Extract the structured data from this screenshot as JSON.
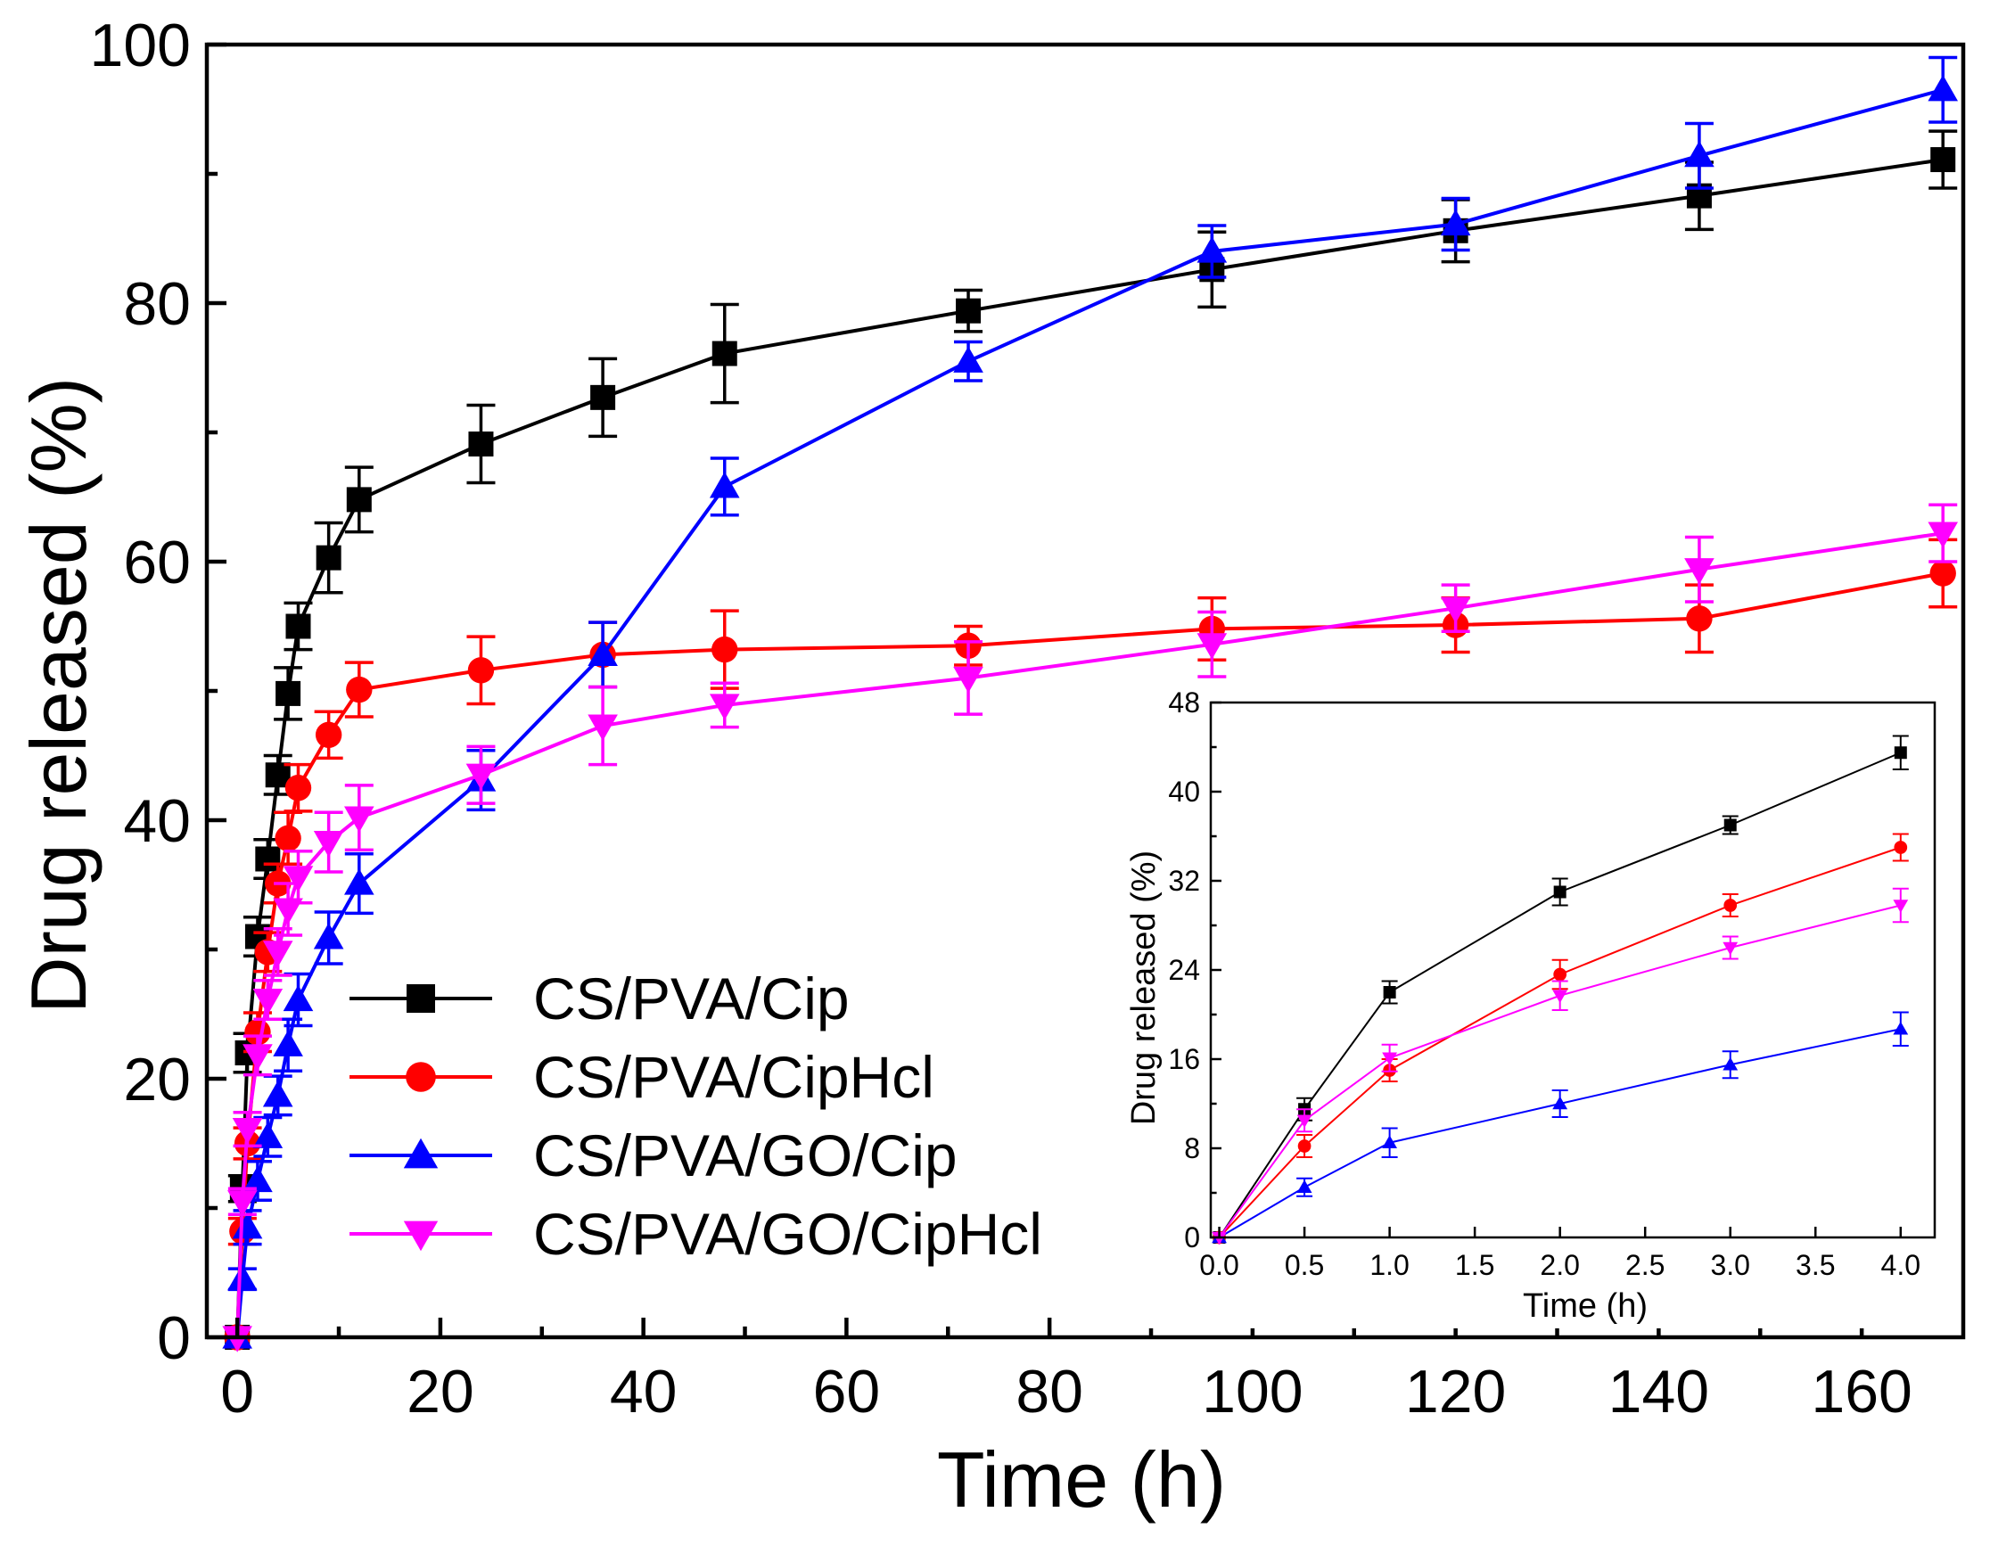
{
  "chart_data": [
    {
      "id": "main",
      "type": "line",
      "xlabel": "Time (h)",
      "ylabel": "Drug released (%)",
      "xlim": [
        -3,
        170
      ],
      "ylim": [
        0,
        100
      ],
      "xticks": [
        0,
        20,
        40,
        60,
        80,
        100,
        120,
        140,
        160
      ],
      "yticks": [
        0,
        20,
        40,
        60,
        80,
        100
      ],
      "legend_position": "center-left",
      "x": [
        0,
        0.5,
        1,
        2,
        3,
        4,
        5,
        6,
        9,
        12,
        24,
        36,
        48,
        72,
        96,
        120,
        144,
        168
      ],
      "series": [
        {
          "name": "CS/PVA/Cip",
          "color": "#000000",
          "marker": "square",
          "values": [
            0,
            11.5,
            22,
            31,
            37,
            43.5,
            49.8,
            55,
            60.3,
            64.8,
            69.1,
            72.7,
            76.1,
            79.4,
            82.6,
            85.6,
            88.3,
            91.1
          ],
          "errors": [
            0,
            1,
            1.5,
            1.5,
            1.5,
            1.5,
            2,
            1.8,
            2.7,
            2.5,
            3,
            3,
            3.8,
            1.6,
            2.9,
            2.4,
            2.6,
            2.2
          ]
        },
        {
          "name": "CS/PVA/CipHcl",
          "color": "#ff0000",
          "marker": "circle",
          "values": [
            0,
            8.2,
            15,
            23.6,
            29.8,
            35.1,
            38.6,
            42.5,
            46.6,
            50.1,
            51.6,
            52.8,
            53.2,
            53.5,
            54.8,
            55.1,
            55.6,
            59.1
          ],
          "errors": [
            0,
            1,
            1.2,
            1.5,
            1.5,
            1.5,
            2,
            1.8,
            1.8,
            2.1,
            2.6,
            2.5,
            3,
            1.5,
            2.4,
            2.1,
            2.6,
            2.6
          ]
        },
        {
          "name": "CS/PVA/GO/Cip",
          "color": "#0000ff",
          "marker": "triangle-up",
          "values": [
            0,
            4.5,
            8.5,
            12.1,
            15.5,
            18.7,
            22.6,
            26.1,
            30.9,
            35.1,
            43.1,
            52.8,
            65.8,
            75.5,
            84,
            86.1,
            91.4,
            96.5
          ],
          "errors": [
            0,
            0.8,
            1.3,
            1.5,
            1.5,
            1.5,
            2,
            2,
            2,
            2.3,
            2.3,
            2.5,
            2.2,
            1.5,
            2,
            2,
            2.5,
            2.5
          ]
        },
        {
          "name": "CS/PVA/GO/CipHcl",
          "color": "#ff00ff",
          "marker": "triangle-down",
          "values": [
            0,
            10.5,
            16.1,
            21.8,
            26.1,
            29.8,
            33.1,
            35.6,
            38.3,
            40.2,
            43.5,
            47.3,
            48.9,
            51,
            53.6,
            56.4,
            59.4,
            62.2
          ],
          "errors": [
            0,
            1,
            1.3,
            1.5,
            1.5,
            1.8,
            2,
            2,
            2.3,
            2.5,
            2.2,
            3,
            1.7,
            2.8,
            2.5,
            1.8,
            2.5,
            2.2
          ]
        }
      ]
    },
    {
      "id": "inset",
      "type": "line",
      "xlabel": "Time (h)",
      "ylabel": "Drug released (%)",
      "xlim": [
        -0.05,
        4.2
      ],
      "ylim": [
        0,
        48
      ],
      "xticks": [
        0.0,
        0.5,
        1.0,
        1.5,
        2.0,
        2.5,
        3.0,
        3.5,
        4.0
      ],
      "xtick_labels": [
        "0.0",
        "0.5",
        "1.0",
        "1.5",
        "2.0",
        "2.5",
        "3.0",
        "3.5",
        "4.0"
      ],
      "yticks": [
        0,
        8,
        16,
        24,
        32,
        40,
        48
      ],
      "x": [
        0,
        0.5,
        1,
        2,
        3,
        4
      ],
      "series": [
        {
          "name": "CS/PVA/Cip",
          "color": "#000000",
          "marker": "square",
          "values": [
            0,
            11.5,
            22,
            31,
            37,
            43.5
          ],
          "errors": [
            0,
            1,
            1,
            1.2,
            0.8,
            1.5
          ]
        },
        {
          "name": "CS/PVA/CipHcl",
          "color": "#ff0000",
          "marker": "circle",
          "values": [
            0,
            8.2,
            15,
            23.6,
            29.8,
            35
          ],
          "errors": [
            0,
            1,
            1,
            1.3,
            1,
            1.2
          ]
        },
        {
          "name": "CS/PVA/GO/Cip",
          "color": "#0000ff",
          "marker": "triangle-up",
          "values": [
            0,
            4.5,
            8.5,
            12,
            15.5,
            18.7
          ],
          "errors": [
            0,
            0.8,
            1.3,
            1.2,
            1.2,
            1.5
          ]
        },
        {
          "name": "CS/PVA/GO/CipHcl",
          "color": "#ff00ff",
          "marker": "triangle-down",
          "values": [
            0,
            10.5,
            16.1,
            21.7,
            26,
            29.8
          ],
          "errors": [
            0,
            1,
            1.2,
            1.3,
            1,
            1.5
          ]
        }
      ]
    }
  ]
}
